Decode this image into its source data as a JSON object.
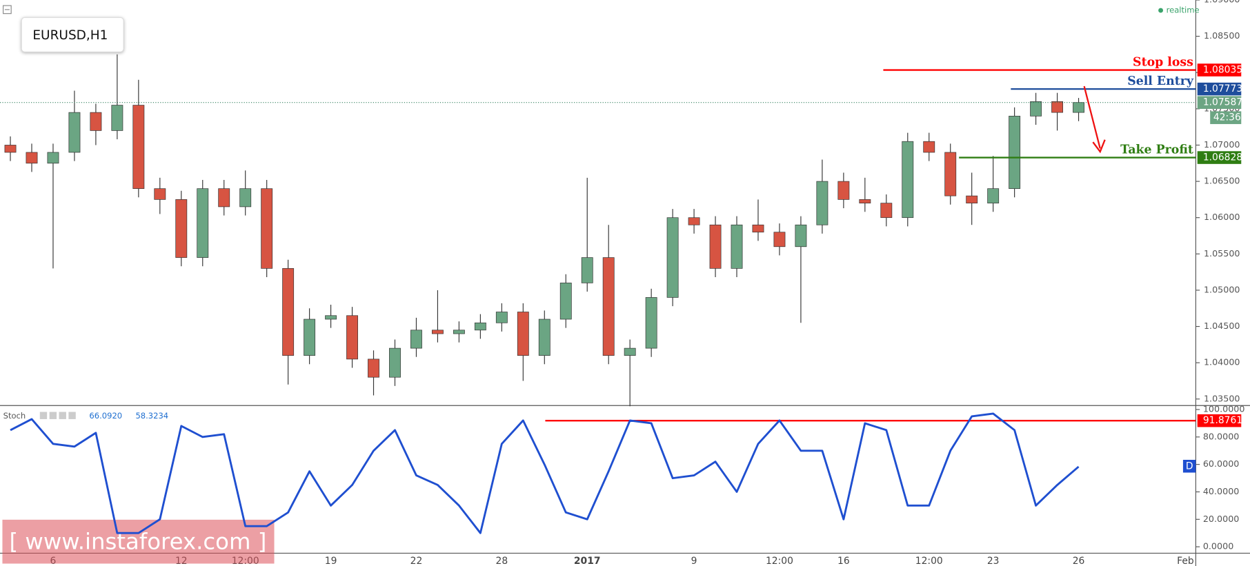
{
  "chart_data": [
    {
      "type": "candlestick",
      "symbol": "EURUSD,H1",
      "status": "realtime",
      "categories": [
        null,
        null,
        "6",
        null,
        null,
        null,
        null,
        null,
        "12",
        null,
        null,
        "12:00",
        null,
        null,
        null,
        "19",
        null,
        null,
        null,
        "22",
        null,
        null,
        null,
        "28",
        null,
        null,
        null,
        "2017",
        null,
        null,
        null,
        null,
        "9",
        null,
        null,
        null,
        "12:00",
        null,
        null,
        "16",
        null,
        null,
        null,
        "12:00",
        null,
        null,
        "23",
        null,
        null,
        null,
        "26",
        null,
        null,
        null,
        null,
        "Feb"
      ],
      "open": [
        1.07,
        1.069,
        1.0675,
        1.069,
        1.0745,
        1.072,
        1.0755,
        1.064,
        1.0625,
        1.0545,
        1.064,
        1.0615,
        1.064,
        1.053,
        1.041,
        1.046,
        1.0465,
        1.0405,
        1.038,
        1.042,
        1.0445,
        1.044,
        1.0445,
        1.0455,
        1.047,
        1.041,
        1.046,
        1.051,
        1.0545,
        1.041,
        1.042,
        1.049,
        1.06,
        1.059,
        1.053,
        1.059,
        1.058,
        1.056,
        1.059,
        1.065,
        1.0625,
        1.062,
        1.06,
        1.0705,
        1.069,
        1.063,
        1.062,
        1.064,
        1.074,
        1.076,
        1.0745,
        null,
        null,
        null,
        null,
        null
      ],
      "high": [
        1.0712,
        1.0702,
        1.0702,
        1.0775,
        1.0757,
        1.0825,
        1.079,
        1.0655,
        1.0637,
        1.0652,
        1.0652,
        1.0665,
        1.0652,
        1.0542,
        1.0475,
        1.048,
        1.0477,
        1.0417,
        1.0432,
        1.0462,
        1.05,
        1.0457,
        1.0467,
        1.0482,
        1.0482,
        1.0472,
        1.0522,
        1.0655,
        1.059,
        1.0432,
        1.0502,
        1.0612,
        1.0612,
        1.0602,
        1.0602,
        1.0625,
        1.0592,
        1.0602,
        1.068,
        1.0662,
        1.0655,
        1.0632,
        1.0717,
        1.0717,
        1.0702,
        1.0662,
        1.0685,
        1.0752,
        1.0772,
        1.0772,
        1.0765,
        null,
        null,
        null,
        null,
        null
      ],
      "low": [
        1.0678,
        1.0663,
        1.053,
        1.0678,
        1.07,
        1.0708,
        1.0628,
        1.0605,
        1.0533,
        1.0533,
        1.0603,
        1.0603,
        1.0518,
        1.037,
        1.0398,
        1.0448,
        1.0393,
        1.0355,
        1.0368,
        1.0408,
        1.0428,
        1.0428,
        1.0433,
        1.0443,
        1.0375,
        1.0398,
        1.0448,
        1.0498,
        1.0398,
        1.034,
        1.0408,
        1.0478,
        1.0578,
        1.0518,
        1.0518,
        1.0568,
        1.0548,
        1.0455,
        1.0578,
        1.0613,
        1.0608,
        1.0588,
        1.0588,
        1.0678,
        1.0618,
        1.059,
        1.0608,
        1.0628,
        1.0728,
        1.072,
        1.0733,
        null,
        null,
        null,
        null,
        null
      ],
      "close": [
        1.069,
        1.0675,
        1.069,
        1.0745,
        1.072,
        1.0755,
        1.064,
        1.0625,
        1.0545,
        1.064,
        1.0615,
        1.064,
        1.053,
        1.041,
        1.046,
        1.0465,
        1.0405,
        1.038,
        1.042,
        1.0445,
        1.044,
        1.0445,
        1.0455,
        1.047,
        1.041,
        1.046,
        1.051,
        1.0545,
        1.041,
        1.042,
        1.049,
        1.06,
        1.059,
        1.053,
        1.059,
        1.058,
        1.056,
        1.059,
        1.065,
        1.0625,
        1.062,
        1.06,
        1.0705,
        1.069,
        1.063,
        1.062,
        1.064,
        1.074,
        1.076,
        1.0745,
        1.07587,
        null,
        null,
        null,
        null,
        null
      ],
      "up_color": "#6ba583",
      "down_color": "#d75442",
      "ylim": [
        1.0341,
        1.09
      ],
      "yticks": [
        {
          "value": 1.035,
          "label": "1.03500"
        },
        {
          "value": 1.04,
          "label": "1.04000"
        },
        {
          "value": 1.045,
          "label": "1.04500"
        },
        {
          "value": 1.05,
          "label": "1.05000"
        },
        {
          "value": 1.055,
          "label": "1.05500"
        },
        {
          "value": 1.06,
          "label": "1.06000"
        },
        {
          "value": 1.065,
          "label": "1.06500"
        },
        {
          "value": 1.07,
          "label": "1.07000"
        },
        {
          "value": 1.075,
          "label": "1.07500"
        },
        {
          "value": 1.08,
          "label": "1.08000"
        },
        {
          "value": 1.085,
          "label": "1.08500"
        },
        {
          "value": 1.09,
          "label": "1.09000"
        }
      ],
      "last_price": 1.07587,
      "last_color": "#6ca583",
      "countdown": "42:36",
      "levels": [
        {
          "name": "Stop loss",
          "value": 1.08035,
          "color": "#ff0000"
        },
        {
          "name": "Sell Entry",
          "value": 1.07773,
          "color": "#1e4d9c"
        },
        {
          "name": "Take Profit",
          "value": 1.06828,
          "color": "#2e7d12"
        }
      ],
      "watermark": "[ www.instaforex.com ]"
    },
    {
      "type": "line",
      "title": "Stoch",
      "legend_values": [
        "66.0920",
        "58.3234"
      ],
      "badge": "D",
      "series": [
        {
          "color": "#1f4fd0",
          "values": [
            85,
            93,
            75,
            73,
            83,
            10,
            10,
            20,
            88,
            80,
            82,
            15,
            15,
            25,
            55,
            30,
            45,
            70,
            85,
            52,
            45,
            30,
            10,
            75,
            92,
            60,
            25,
            20,
            55,
            92,
            90,
            50,
            52,
            62,
            40,
            75,
            92,
            70,
            70,
            20,
            90,
            85,
            30,
            30,
            70,
            95,
            97,
            85,
            30,
            45,
            58.3234,
            null,
            null,
            null,
            null,
            null
          ]
        }
      ],
      "ylim": [
        -4.7,
        102.9
      ],
      "yticks": [
        {
          "value": 0,
          "label": "0.0000"
        },
        {
          "value": 20,
          "label": "20.0000"
        },
        {
          "value": 40,
          "label": "40.0000"
        },
        {
          "value": 60,
          "label": "60.0000"
        },
        {
          "value": 80,
          "label": "80.0000"
        },
        {
          "value": 100,
          "label": "100.0000"
        }
      ],
      "levels": [
        {
          "value": 91.8761,
          "color": "#ff0000"
        }
      ]
    }
  ]
}
